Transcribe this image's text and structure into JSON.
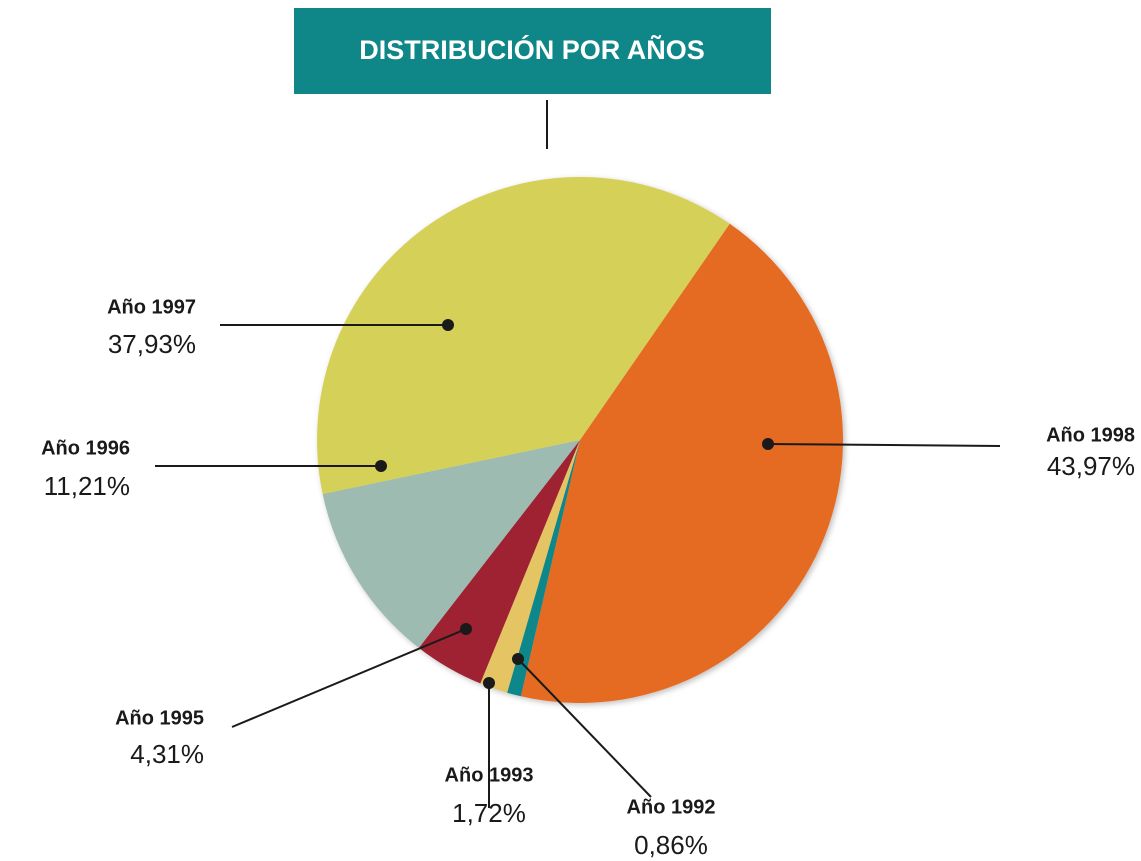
{
  "chart_data": {
    "type": "pie",
    "title": "DISTRIBUCIÓN POR AÑOS",
    "categories": [
      "Año 1998",
      "Año 1992",
      "Año 1993",
      "Año 1995",
      "Año 1996",
      "Año 1997"
    ],
    "values": [
      43.97,
      0.86,
      1.72,
      4.31,
      11.21,
      37.93
    ],
    "value_labels": [
      "43,97%",
      "0,86%",
      "1,72%",
      "4,31%",
      "11,21%",
      "37,93%"
    ],
    "colors": [
      "#e56a24",
      "#0f8789",
      "#e4c463",
      "#9e2430",
      "#9ebbb2",
      "#d5d158"
    ]
  }
}
